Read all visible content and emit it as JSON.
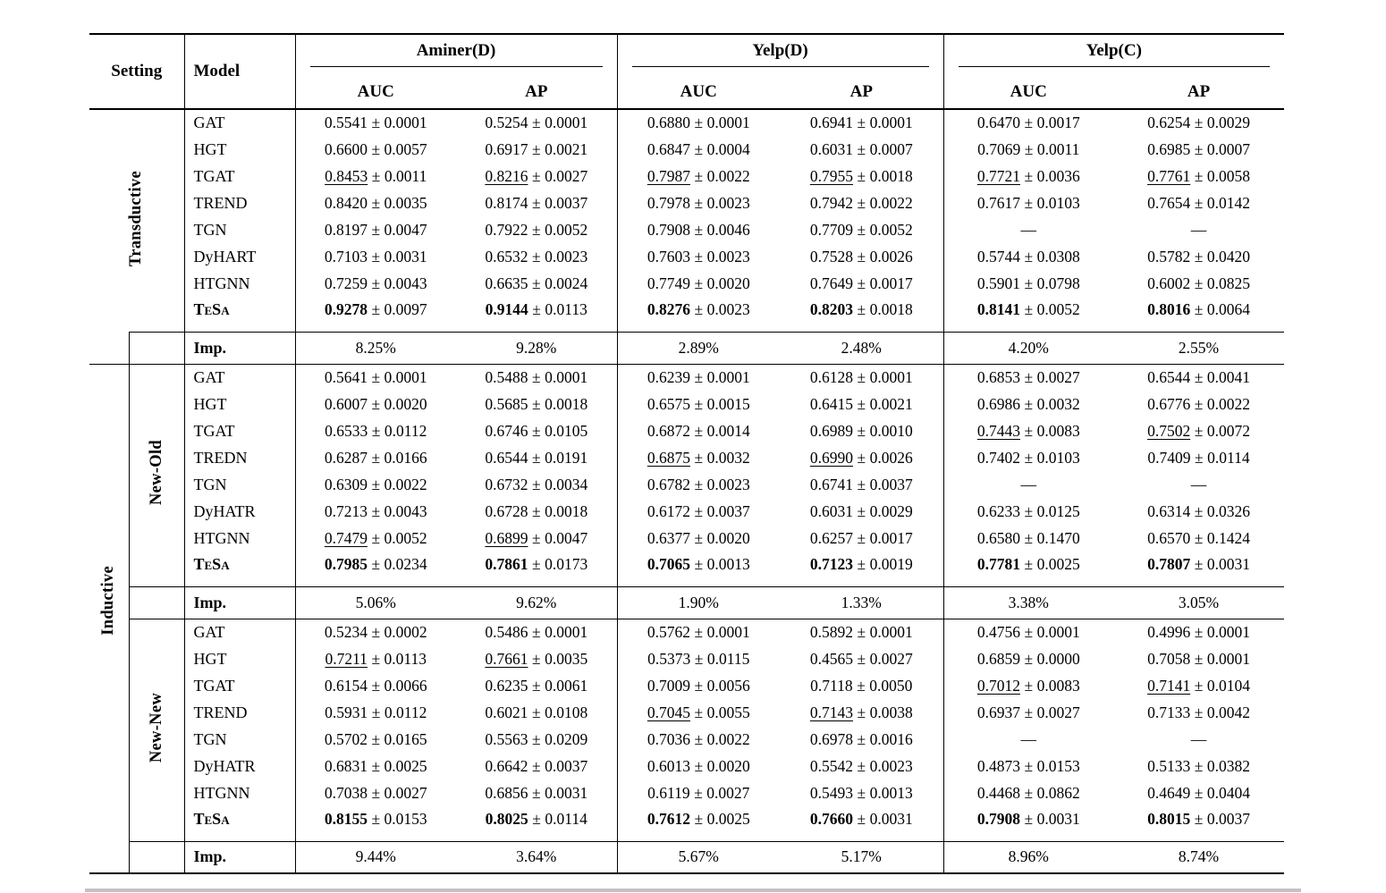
{
  "pm": "±",
  "imp_label": "Imp.",
  "header": {
    "setting": "Setting",
    "model": "Model",
    "groups": [
      {
        "label": "Aminer(D)",
        "sub": [
          "AUC",
          "AP"
        ]
      },
      {
        "label": "Yelp(D)",
        "sub": [
          "AUC",
          "AP"
        ]
      },
      {
        "label": "Yelp(C)",
        "sub": [
          "AUC",
          "AP"
        ]
      }
    ]
  },
  "sections": [
    {
      "outer": "Transductive",
      "inner": null,
      "rows": [
        {
          "model": "GAT",
          "cells": [
            [
              "0.5541",
              "0.0001"
            ],
            [
              "0.5254",
              "0.0001"
            ],
            [
              "0.6880",
              "0.0001"
            ],
            [
              "0.6941",
              "0.0001"
            ],
            [
              "0.6470",
              "0.0017"
            ],
            [
              "0.6254",
              "0.0029"
            ]
          ]
        },
        {
          "model": "HGT",
          "cells": [
            [
              "0.6600",
              "0.0057"
            ],
            [
              "0.6917",
              "0.0021"
            ],
            [
              "0.6847",
              "0.0004"
            ],
            [
              "0.6031",
              "0.0007"
            ],
            [
              "0.7069",
              "0.0011"
            ],
            [
              "0.6985",
              "0.0007"
            ]
          ]
        },
        {
          "model": "TGAT",
          "cells": [
            [
              "0.8453",
              "0.0011",
              "u"
            ],
            [
              "0.8216",
              "0.0027",
              "u"
            ],
            [
              "0.7987",
              "0.0022",
              "u"
            ],
            [
              "0.7955",
              "0.0018",
              "u"
            ],
            [
              "0.7721",
              "0.0036",
              "u"
            ],
            [
              "0.7761",
              "0.0058",
              "u"
            ]
          ]
        },
        {
          "model": "TREND",
          "cells": [
            [
              "0.8420",
              "0.0035"
            ],
            [
              "0.8174",
              "0.0037"
            ],
            [
              "0.7978",
              "0.0023"
            ],
            [
              "0.7942",
              "0.0022"
            ],
            [
              "0.7617",
              "0.0103"
            ],
            [
              "0.7654",
              "0.0142"
            ]
          ]
        },
        {
          "model": "TGN",
          "cells": [
            [
              "0.8197",
              "0.0047"
            ],
            [
              "0.7922",
              "0.0052"
            ],
            [
              "0.7908",
              "0.0046"
            ],
            [
              "0.7709",
              "0.0052"
            ],
            [
              "—"
            ],
            [
              "—"
            ]
          ]
        },
        {
          "model": "DyHART",
          "cells": [
            [
              "0.7103",
              "0.0031"
            ],
            [
              "0.6532",
              "0.0023"
            ],
            [
              "0.7603",
              "0.0023"
            ],
            [
              "0.7528",
              "0.0026"
            ],
            [
              "0.5744",
              "0.0308"
            ],
            [
              "0.5782",
              "0.0420"
            ]
          ]
        },
        {
          "model": "HTGNN",
          "cells": [
            [
              "0.7259",
              "0.0043"
            ],
            [
              "0.6635",
              "0.0024"
            ],
            [
              "0.7749",
              "0.0020"
            ],
            [
              "0.7649",
              "0.0017"
            ],
            [
              "0.5901",
              "0.0798"
            ],
            [
              "0.6002",
              "0.0825"
            ]
          ]
        },
        {
          "model": "TeSa",
          "sc": true,
          "cells": [
            [
              "0.9278",
              "0.0097",
              "b"
            ],
            [
              "0.9144",
              "0.0113",
              "b"
            ],
            [
              "0.8276",
              "0.0023",
              "b"
            ],
            [
              "0.8203",
              "0.0018",
              "b"
            ],
            [
              "0.8141",
              "0.0052",
              "b"
            ],
            [
              "0.8016",
              "0.0064",
              "b"
            ]
          ]
        }
      ],
      "imp": [
        "8.25%",
        "9.28%",
        "2.89%",
        "2.48%",
        "4.20%",
        "2.55%"
      ]
    },
    {
      "outer": "Inductive",
      "inner": "New-Old",
      "rows": [
        {
          "model": "GAT",
          "cells": [
            [
              "0.5641",
              "0.0001"
            ],
            [
              "0.5488",
              "0.0001"
            ],
            [
              "0.6239",
              "0.0001"
            ],
            [
              "0.6128",
              "0.0001"
            ],
            [
              "0.6853",
              "0.0027"
            ],
            [
              "0.6544",
              "0.0041"
            ]
          ]
        },
        {
          "model": "HGT",
          "cells": [
            [
              "0.6007",
              "0.0020"
            ],
            [
              "0.5685",
              "0.0018"
            ],
            [
              "0.6575",
              "0.0015"
            ],
            [
              "0.6415",
              "0.0021"
            ],
            [
              "0.6986",
              "0.0032"
            ],
            [
              "0.6776",
              "0.0022"
            ]
          ]
        },
        {
          "model": "TGAT",
          "cells": [
            [
              "0.6533",
              "0.0112"
            ],
            [
              "0.6746",
              "0.0105"
            ],
            [
              "0.6872",
              "0.0014"
            ],
            [
              "0.6989",
              "0.0010"
            ],
            [
              "0.7443",
              "0.0083",
              "u"
            ],
            [
              "0.7502",
              "0.0072",
              "u"
            ]
          ]
        },
        {
          "model": "TREDN",
          "cells": [
            [
              "0.6287",
              "0.0166"
            ],
            [
              "0.6544",
              "0.0191"
            ],
            [
              "0.6875",
              "0.0032",
              "u"
            ],
            [
              "0.6990",
              "0.0026",
              "u"
            ],
            [
              "0.7402",
              "0.0103"
            ],
            [
              "0.7409",
              "0.0114"
            ]
          ]
        },
        {
          "model": "TGN",
          "cells": [
            [
              "0.6309",
              "0.0022"
            ],
            [
              "0.6732",
              "0.0034"
            ],
            [
              "0.6782",
              "0.0023"
            ],
            [
              "0.6741",
              "0.0037"
            ],
            [
              "—"
            ],
            [
              "—"
            ]
          ]
        },
        {
          "model": "DyHATR",
          "cells": [
            [
              "0.7213",
              "0.0043"
            ],
            [
              "0.6728",
              "0.0018"
            ],
            [
              "0.6172",
              "0.0037"
            ],
            [
              "0.6031",
              "0.0029"
            ],
            [
              "0.6233",
              "0.0125"
            ],
            [
              "0.6314",
              "0.0326"
            ]
          ]
        },
        {
          "model": "HTGNN",
          "cells": [
            [
              "0.7479",
              "0.0052",
              "u"
            ],
            [
              "0.6899",
              "0.0047",
              "u"
            ],
            [
              "0.6377",
              "0.0020"
            ],
            [
              "0.6257",
              "0.0017"
            ],
            [
              "0.6580",
              "0.1470"
            ],
            [
              "0.6570",
              "0.1424"
            ]
          ]
        },
        {
          "model": "TeSa",
          "sc": true,
          "cells": [
            [
              "0.7985",
              "0.0234",
              "b"
            ],
            [
              "0.7861",
              "0.0173",
              "b"
            ],
            [
              "0.7065",
              "0.0013",
              "b"
            ],
            [
              "0.7123",
              "0.0019",
              "b"
            ],
            [
              "0.7781",
              "0.0025",
              "b"
            ],
            [
              "0.7807",
              "0.0031",
              "b"
            ]
          ]
        }
      ],
      "imp": [
        "5.06%",
        "9.62%",
        "1.90%",
        "1.33%",
        "3.38%",
        "3.05%"
      ]
    },
    {
      "outer": null,
      "inner": "New-New",
      "rows": [
        {
          "model": "GAT",
          "cells": [
            [
              "0.5234",
              "0.0002"
            ],
            [
              "0.5486",
              "0.0001"
            ],
            [
              "0.5762",
              "0.0001"
            ],
            [
              "0.5892",
              "0.0001"
            ],
            [
              "0.4756",
              "0.0001"
            ],
            [
              "0.4996",
              "0.0001"
            ]
          ]
        },
        {
          "model": "HGT",
          "cells": [
            [
              "0.7211",
              "0.0113",
              "u"
            ],
            [
              "0.7661",
              "0.0035",
              "u"
            ],
            [
              "0.5373",
              "0.0115"
            ],
            [
              "0.4565",
              "0.0027"
            ],
            [
              "0.6859",
              "0.0000"
            ],
            [
              "0.7058",
              "0.0001"
            ]
          ]
        },
        {
          "model": "TGAT",
          "cells": [
            [
              "0.6154",
              "0.0066"
            ],
            [
              "0.6235",
              "0.0061"
            ],
            [
              "0.7009",
              "0.0056"
            ],
            [
              "0.7118",
              "0.0050"
            ],
            [
              "0.7012",
              "0.0083",
              "u"
            ],
            [
              "0.7141",
              "0.0104",
              "u"
            ]
          ]
        },
        {
          "model": "TREND",
          "cells": [
            [
              "0.5931",
              "0.0112"
            ],
            [
              "0.6021",
              "0.0108"
            ],
            [
              "0.7045",
              "0.0055",
              "u"
            ],
            [
              "0.7143",
              "0.0038",
              "u"
            ],
            [
              "0.6937",
              "0.0027"
            ],
            [
              "0.7133",
              "0.0042"
            ]
          ]
        },
        {
          "model": "TGN",
          "cells": [
            [
              "0.5702",
              "0.0165"
            ],
            [
              "0.5563",
              "0.0209"
            ],
            [
              "0.7036",
              "0.0022"
            ],
            [
              "0.6978",
              "0.0016"
            ],
            [
              "—"
            ],
            [
              "—"
            ]
          ]
        },
        {
          "model": "DyHATR",
          "cells": [
            [
              "0.6831",
              "0.0025"
            ],
            [
              "0.6642",
              "0.0037"
            ],
            [
              "0.6013",
              "0.0020"
            ],
            [
              "0.5542",
              "0.0023"
            ],
            [
              "0.4873",
              "0.0153"
            ],
            [
              "0.5133",
              "0.0382"
            ]
          ]
        },
        {
          "model": "HTGNN",
          "cells": [
            [
              "0.7038",
              "0.0027"
            ],
            [
              "0.6856",
              "0.0031"
            ],
            [
              "0.6119",
              "0.0027"
            ],
            [
              "0.5493",
              "0.0013"
            ],
            [
              "0.4468",
              "0.0862"
            ],
            [
              "0.4649",
              "0.0404"
            ]
          ]
        },
        {
          "model": "TeSa",
          "sc": true,
          "cells": [
            [
              "0.8155",
              "0.0153",
              "b"
            ],
            [
              "0.8025",
              "0.0114",
              "b"
            ],
            [
              "0.7612",
              "0.0025",
              "b"
            ],
            [
              "0.7660",
              "0.0031",
              "b"
            ],
            [
              "0.7908",
              "0.0031",
              "b"
            ],
            [
              "0.8015",
              "0.0037",
              "b"
            ]
          ]
        }
      ],
      "imp": [
        "9.44%",
        "3.64%",
        "5.67%",
        "5.17%",
        "8.96%",
        "8.74%"
      ]
    }
  ]
}
